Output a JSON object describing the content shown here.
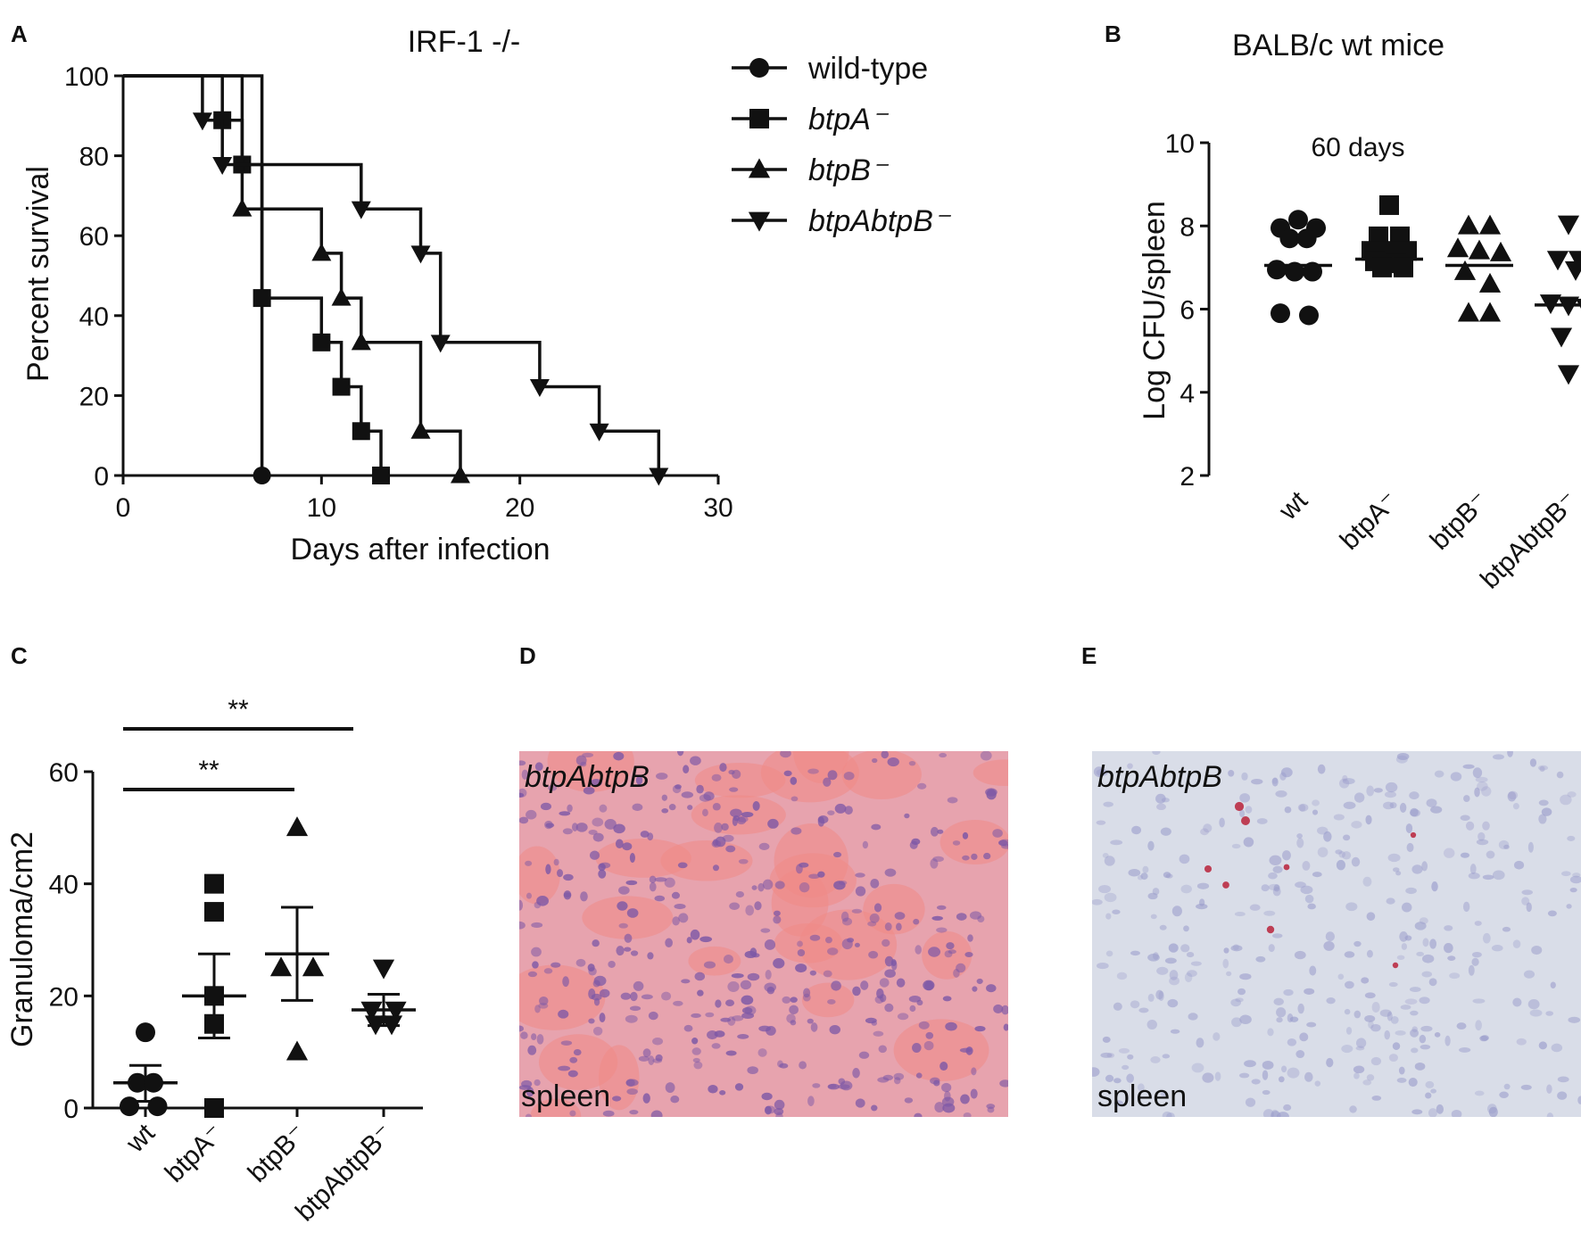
{
  "panels": {
    "A": "A",
    "B": "B",
    "C": "C",
    "D": "D",
    "E": "E"
  },
  "chart_data": [
    {
      "id": "A",
      "type": "line",
      "step": true,
      "title": "IRF-1 -/-",
      "xlabel": "Days after infection",
      "ylabel": "Percent survival",
      "xlim": [
        0,
        30
      ],
      "ylim": [
        0,
        100
      ],
      "xticks": [
        "0",
        "10",
        "20",
        "30"
      ],
      "yticks": [
        "0",
        "20",
        "40",
        "60",
        "80",
        "100"
      ],
      "legend_position": "right",
      "series": [
        {
          "name": "wild-type",
          "marker": "circle",
          "points": [
            [
              0,
              100
            ],
            [
              7,
              100
            ],
            [
              7,
              0
            ]
          ],
          "markers": [
            [
              7,
              0
            ]
          ]
        },
        {
          "name": "btpA⁻",
          "marker": "square",
          "points": [
            [
              0,
              100
            ],
            [
              5,
              100
            ],
            [
              5,
              88.9
            ],
            [
              6,
              88.9
            ],
            [
              6,
              77.8
            ],
            [
              7,
              77.8
            ],
            [
              7,
              44.4
            ],
            [
              10,
              44.4
            ],
            [
              10,
              33.3
            ],
            [
              11,
              33.3
            ],
            [
              11,
              22.2
            ],
            [
              12,
              22.2
            ],
            [
              12,
              11.1
            ],
            [
              13,
              11.1
            ],
            [
              13,
              0
            ]
          ],
          "markers": [
            [
              5,
              88.9
            ],
            [
              6,
              77.8
            ],
            [
              7,
              44.4
            ],
            [
              10,
              33.3
            ],
            [
              11,
              22.2
            ],
            [
              12,
              11.1
            ],
            [
              13,
              0
            ]
          ]
        },
        {
          "name": "btpB⁻",
          "marker": "triangle-up",
          "points": [
            [
              0,
              100
            ],
            [
              6,
              100
            ],
            [
              6,
              66.7
            ],
            [
              10,
              66.7
            ],
            [
              10,
              55.6
            ],
            [
              11,
              55.6
            ],
            [
              11,
              44.4
            ],
            [
              12,
              44.4
            ],
            [
              12,
              33.3
            ],
            [
              15,
              33.3
            ],
            [
              15,
              11.1
            ],
            [
              17,
              11.1
            ],
            [
              17,
              0
            ]
          ],
          "markers": [
            [
              6,
              66.7
            ],
            [
              10,
              55.6
            ],
            [
              11,
              44.4
            ],
            [
              12,
              33.3
            ],
            [
              15,
              11.1
            ],
            [
              17,
              0
            ]
          ]
        },
        {
          "name": "btpAbtpB⁻",
          "marker": "triangle-down",
          "points": [
            [
              0,
              100
            ],
            [
              4,
              100
            ],
            [
              4,
              88.9
            ],
            [
              5,
              88.9
            ],
            [
              5,
              77.8
            ],
            [
              12,
              77.8
            ],
            [
              12,
              66.7
            ],
            [
              15,
              66.7
            ],
            [
              15,
              55.6
            ],
            [
              16,
              55.6
            ],
            [
              16,
              33.3
            ],
            [
              21,
              33.3
            ],
            [
              21,
              22.2
            ],
            [
              24,
              22.2
            ],
            [
              24,
              11.1
            ],
            [
              27,
              11.1
            ],
            [
              27,
              0
            ]
          ],
          "markers": [
            [
              4,
              88.9
            ],
            [
              5,
              77.8
            ],
            [
              12,
              66.7
            ],
            [
              15,
              55.6
            ],
            [
              16,
              33.3
            ],
            [
              21,
              22.2
            ],
            [
              24,
              11.1
            ],
            [
              27,
              0
            ]
          ]
        }
      ]
    },
    {
      "id": "B",
      "type": "scatter",
      "title": "BALB/c wt mice",
      "annotation": "60 days",
      "ylabel": "Log CFU/spleen",
      "ylim": [
        2,
        10
      ],
      "yticks": [
        "2",
        "4",
        "6",
        "8",
        "10"
      ],
      "categories": [
        "wt",
        "btpA⁻",
        "btpB⁻",
        "btpAbtpB⁻"
      ],
      "series": [
        {
          "category": "wt",
          "marker": "circle",
          "median": 7.05,
          "points": [
            [
              -0.25,
              7.95
            ],
            [
              0,
              8.15
            ],
            [
              0.25,
              7.95
            ],
            [
              -0.12,
              7.7
            ],
            [
              0.12,
              7.7
            ],
            [
              -0.3,
              6.95
            ],
            [
              -0.05,
              6.9
            ],
            [
              0.2,
              6.9
            ],
            [
              -0.25,
              5.9
            ],
            [
              0.15,
              5.85
            ]
          ]
        },
        {
          "category": "btpA⁻",
          "marker": "square",
          "median": 7.2,
          "points": [
            [
              0,
              8.5
            ],
            [
              -0.15,
              7.75
            ],
            [
              0.15,
              7.75
            ],
            [
              -0.25,
              7.4
            ],
            [
              0,
              7.4
            ],
            [
              0.25,
              7.4
            ],
            [
              -0.2,
              7.15
            ],
            [
              0.1,
              7.1
            ],
            [
              -0.1,
              7.0
            ],
            [
              0.2,
              7.0
            ]
          ]
        },
        {
          "category": "btpB⁻",
          "marker": "triangle-up",
          "median": 7.05,
          "points": [
            [
              -0.15,
              8.0
            ],
            [
              0.15,
              8.0
            ],
            [
              -0.3,
              7.45
            ],
            [
              0,
              7.4
            ],
            [
              0.3,
              7.35
            ],
            [
              -0.2,
              6.9
            ],
            [
              0.15,
              6.6
            ],
            [
              -0.15,
              5.9
            ],
            [
              0.15,
              5.9
            ]
          ]
        },
        {
          "category": "btpAbtpB⁻",
          "marker": "triangle-down",
          "median": 6.1,
          "points": [
            [
              0,
              8.05
            ],
            [
              -0.15,
              7.2
            ],
            [
              0.15,
              7.2
            ],
            [
              0.1,
              6.95
            ],
            [
              -0.25,
              6.15
            ],
            [
              0,
              6.1
            ],
            [
              0.25,
              6.05
            ],
            [
              -0.1,
              5.35
            ],
            [
              0,
              4.45
            ]
          ]
        }
      ]
    },
    {
      "id": "C",
      "type": "scatter",
      "ylabel": "Granuloma/cm2",
      "ylim": [
        0,
        60
      ],
      "yticks": [
        "0",
        "20",
        "40",
        "60"
      ],
      "categories": [
        "wt",
        "btpA⁻",
        "btpB⁻",
        "btpAbtpB⁻"
      ],
      "significance": [
        {
          "from": 0,
          "to": 3,
          "label": "**"
        },
        {
          "from": 0,
          "to": 2,
          "label": "**"
        }
      ],
      "series": [
        {
          "category": "wt",
          "marker": "circle",
          "mean": 4.5,
          "sem_low": 1.2,
          "sem_high": 7.6,
          "points": [
            [
              0,
              13.5
            ],
            [
              -0.1,
              4.5
            ],
            [
              0.1,
              4.5
            ],
            [
              -0.2,
              0.3
            ],
            [
              0.15,
              0.3
            ]
          ]
        },
        {
          "category": "btpA⁻",
          "marker": "square",
          "mean": 20,
          "sem_low": 12.5,
          "sem_high": 27.5,
          "points": [
            [
              0,
              40
            ],
            [
              0,
              35
            ],
            [
              0,
              20
            ],
            [
              0,
              15
            ],
            [
              0,
              0
            ]
          ]
        },
        {
          "category": "btpB⁻",
          "marker": "triangle-up",
          "mean": 27.5,
          "sem_low": 19.2,
          "sem_high": 35.8,
          "points": [
            [
              0,
              50
            ],
            [
              -0.2,
              25
            ],
            [
              0.2,
              25
            ],
            [
              0,
              10
            ]
          ]
        },
        {
          "category": "btpAbtpB⁻",
          "marker": "triangle-down",
          "mean": 17.5,
          "sem_low": 14.7,
          "sem_high": 20.3,
          "points": [
            [
              0,
              25
            ],
            [
              -0.15,
              17.5
            ],
            [
              0.15,
              17.5
            ],
            [
              -0.1,
              15
            ],
            [
              0.1,
              15
            ]
          ]
        }
      ]
    }
  ],
  "micrographs": [
    {
      "id": "D",
      "label_top": "btpAbtpB",
      "label_bottom": "spleen",
      "stain": "he",
      "bg": "#e7a3ae",
      "cell": "#7d58a6",
      "blotch": "#f08a86"
    },
    {
      "id": "E",
      "label_top": "btpAbtpB",
      "label_bottom": "spleen",
      "stain": "ihc",
      "bg": "#d9dde8",
      "cell": "#9a9ccb",
      "blotch": "#b9223a"
    }
  ]
}
